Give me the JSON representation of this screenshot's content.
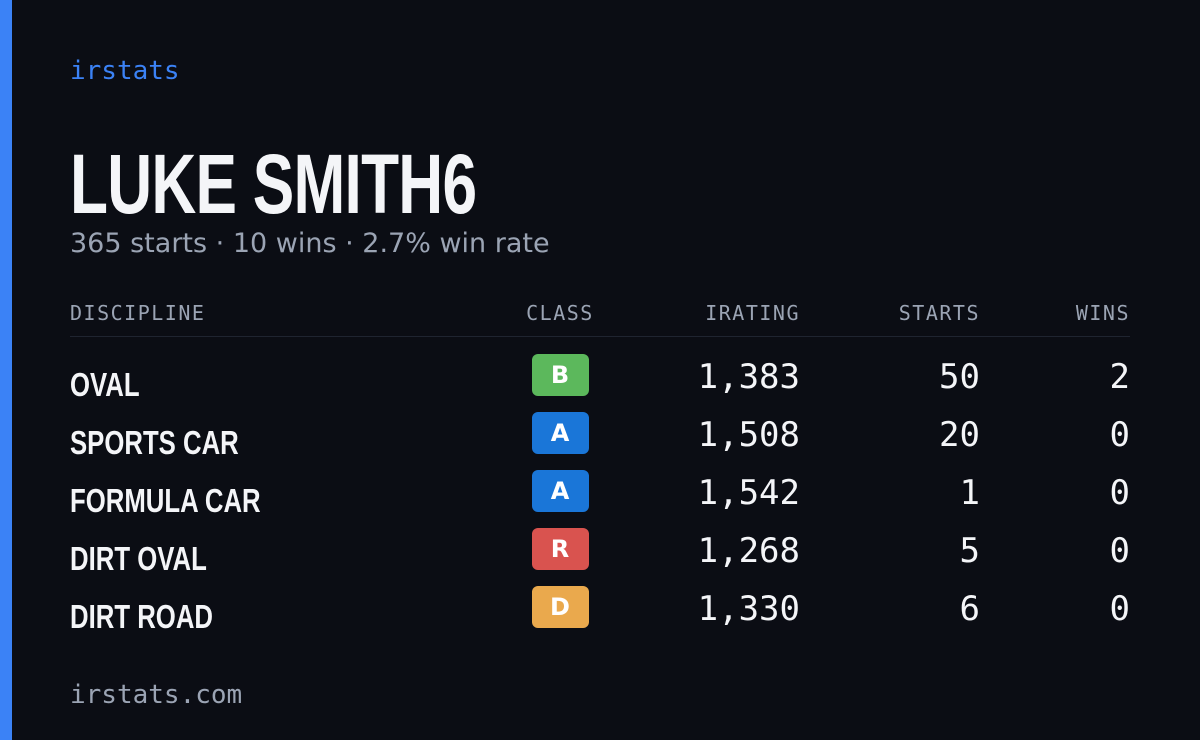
{
  "brand": "irstats",
  "profile": {
    "name": "LUKE SMITH6",
    "summary": "365 starts · 10 wins · 2.7% win rate"
  },
  "table": {
    "headers": [
      "DISCIPLINE",
      "CLASS",
      "IRATING",
      "STARTS",
      "WINS"
    ],
    "rows": [
      {
        "discipline": "OVAL",
        "class": "B",
        "class_color": "#5cb85c",
        "irating": "1,383",
        "starts": "50",
        "wins": "2"
      },
      {
        "discipline": "SPORTS CAR",
        "class": "A",
        "class_color": "#1a76d8",
        "irating": "1,508",
        "starts": "20",
        "wins": "0"
      },
      {
        "discipline": "FORMULA CAR",
        "class": "A",
        "class_color": "#1a76d8",
        "irating": "1,542",
        "starts": "1",
        "wins": "0"
      },
      {
        "discipline": "DIRT OVAL",
        "class": "R",
        "class_color": "#d9534f",
        "irating": "1,268",
        "starts": "5",
        "wins": "0"
      },
      {
        "discipline": "DIRT ROAD",
        "class": "D",
        "class_color": "#eaa94d",
        "irating": "1,330",
        "starts": "6",
        "wins": "0"
      }
    ]
  },
  "footer": "irstats.com"
}
